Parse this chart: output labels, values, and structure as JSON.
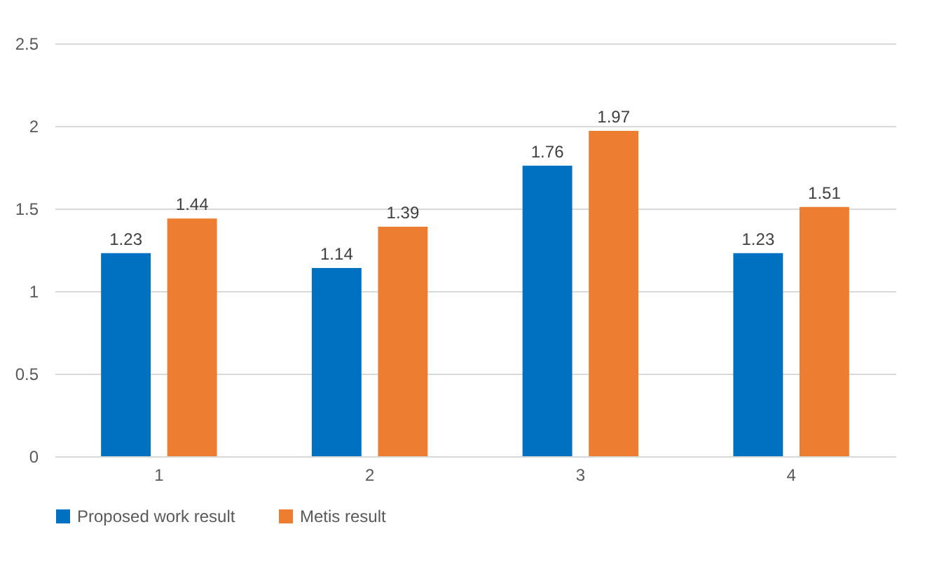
{
  "chart_data": {
    "type": "bar",
    "categories": [
      "1",
      "2",
      "3",
      "4"
    ],
    "series": [
      {
        "name": "Proposed work result",
        "color": "#0070c0",
        "values": [
          1.23,
          1.14,
          1.76,
          1.23
        ]
      },
      {
        "name": "Metis result",
        "color": "#ed7d31",
        "values": [
          1.44,
          1.39,
          1.97,
          1.51
        ]
      }
    ],
    "ylim": [
      0,
      2.5
    ],
    "yticks": [
      0,
      0.5,
      1,
      1.5,
      2,
      2.5
    ],
    "grid": "y",
    "legend": "bottom",
    "data_labels": true
  }
}
